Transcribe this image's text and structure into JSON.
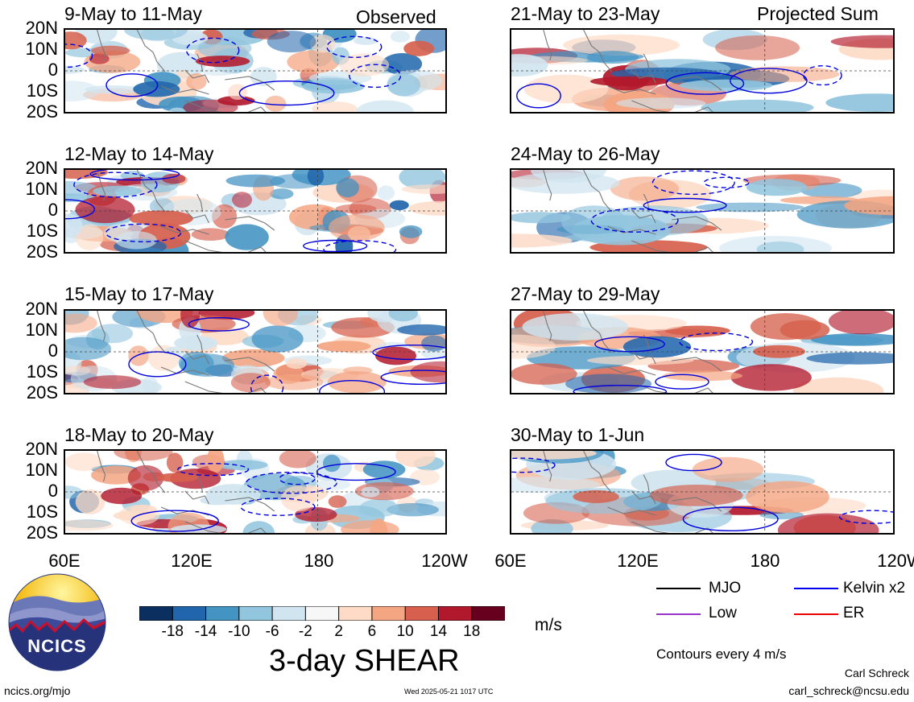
{
  "figure": {
    "left_label": "Observed",
    "right_label": "Projected Sum",
    "title": "3-day SHEAR",
    "units": "m/s",
    "contour_note": "Contours every 4 m/s",
    "author": "Carl Schreck",
    "email": "carl_schreck@ncsu.edu",
    "url": "ncics.org/mjo",
    "timestamp": "Wed 2025-05-21 1017 UTC",
    "logo_text": "NCICS"
  },
  "panels_left": [
    {
      "title": "9-May to 11-May"
    },
    {
      "title": "12-May to 14-May"
    },
    {
      "title": "15-May to 17-May"
    },
    {
      "title": "18-May to 20-May"
    }
  ],
  "panels_right": [
    {
      "title": "21-May to 23-May"
    },
    {
      "title": "24-May to 26-May"
    },
    {
      "title": "27-May to 29-May"
    },
    {
      "title": "30-May to 1-Jun"
    }
  ],
  "lat_ticks": [
    "20N",
    "10N",
    "0",
    "10S",
    "20S"
  ],
  "lon_ticks": [
    "60E",
    "120E",
    "180",
    "120W"
  ],
  "colorbar": {
    "labels": [
      "-18",
      "-14",
      "-10",
      "-6",
      "-2",
      "2",
      "6",
      "10",
      "14",
      "18"
    ],
    "colors": [
      "#0b2f5e",
      "#2166ac",
      "#4393c3",
      "#92c5de",
      "#d1e5f0",
      "#f7f7f7",
      "#fddbc7",
      "#f4a582",
      "#d6604d",
      "#b2182b",
      "#67001f"
    ]
  },
  "legend": [
    {
      "label": "MJO",
      "color": "#000000"
    },
    {
      "label": "Kelvin x2",
      "color": "#0000ee"
    },
    {
      "label": "Low",
      "color": "#9933cc"
    },
    {
      "label": "ER",
      "color": "#ee0000"
    }
  ]
}
